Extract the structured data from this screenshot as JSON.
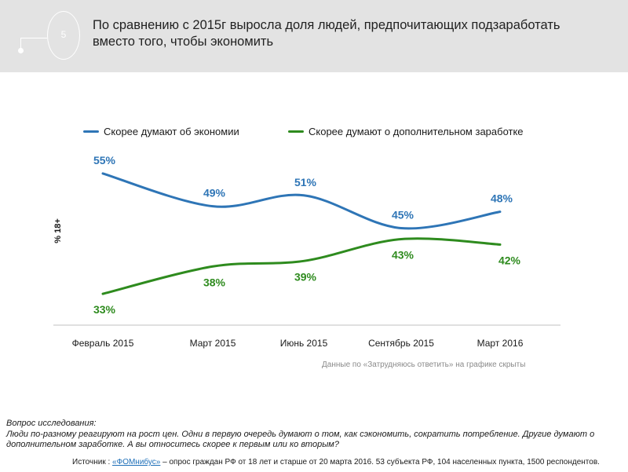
{
  "header": {
    "slide_number": "5",
    "title": "По сравнению с 2015г выросла доля людей, предпочитающих подзаработать вместо того, чтобы экономить"
  },
  "chart_data": {
    "type": "line",
    "categories": [
      "Февраль 2015",
      "Март 2015",
      "Июнь 2015",
      "Сентябрь 2015",
      "Март 2016"
    ],
    "series": [
      {
        "name": "Скорее думают об экономии",
        "values": [
          55,
          49,
          51,
          45,
          48
        ],
        "labels": [
          "55%",
          "49%",
          "51%",
          "45%",
          "48%"
        ],
        "color": "#2e75b6"
      },
      {
        "name": "Скорее думают о дополнительном заработке",
        "values": [
          33,
          38,
          39,
          43,
          42
        ],
        "labels": [
          "33%",
          "38%",
          "39%",
          "43%",
          "42%"
        ],
        "color": "#2e8b1e"
      }
    ],
    "ylabel": "% 18+",
    "ylim": [
      30,
      58
    ],
    "grid": false,
    "legend": "top",
    "note": "Данные по «Затрудняюсь ответить» на графике скрыты"
  },
  "footer": {
    "question_label": "Вопрос исследования:",
    "question_text": "Люди по-разному реагируют на рост цен. Одни в первую очередь думают о том, как сэкономить, сократить потребление. Другие думают о дополнительном заработке. А вы относитесь скорее к первым или ко вторым?",
    "source_prefix": "Источник : ",
    "source_link": "«ФОМнибус»",
    "source_suffix": " – опрос граждан РФ от 18 лет и старше от 20 марта 2016. 53 субъекта РФ, 104 населенных пункта, 1500 респондентов."
  },
  "colors": {
    "header_bg": "#e3e3e3",
    "series_blue": "#2e75b6",
    "series_green": "#2e8b1e"
  }
}
